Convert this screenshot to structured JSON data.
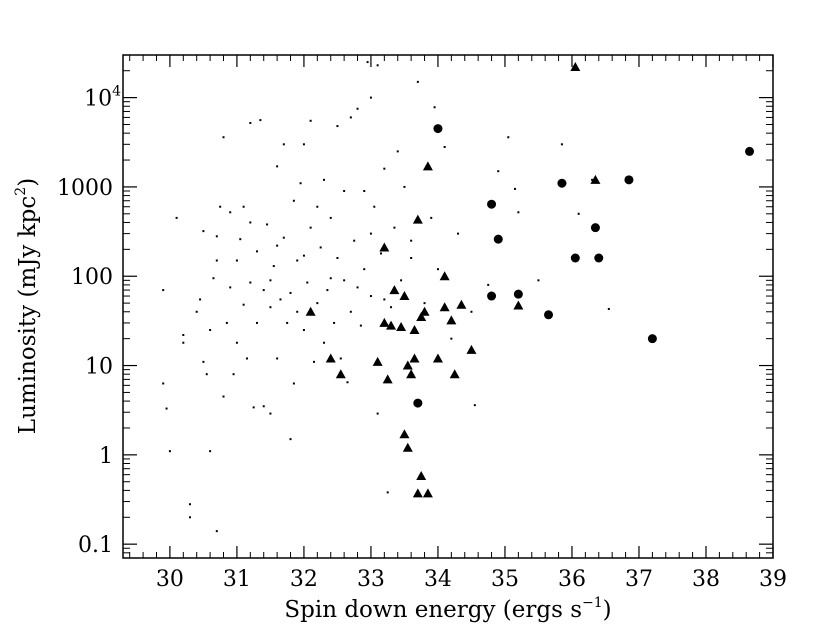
{
  "chart_data": {
    "type": "scatter",
    "title": "",
    "xlabel": "Spin down energy (ergs s",
    "xlabel_sup": "−1",
    "xlabel_close": ")",
    "ylabel": "Luminosity (mJy kpc",
    "ylabel_sup": "2",
    "ylabel_close": ")",
    "x_scale": "linear",
    "y_scale": "log",
    "xlim": [
      29.3,
      39.0
    ],
    "ylim": [
      0.07,
      30000
    ],
    "x_ticks": [
      30,
      31,
      32,
      33,
      34,
      35,
      36,
      37,
      38,
      39
    ],
    "x_tick_labels": [
      "30",
      "31",
      "32",
      "33",
      "34",
      "35",
      "36",
      "37",
      "38",
      "39"
    ],
    "y_ticks": [
      {
        "value": 0.1,
        "label": "0.1"
      },
      {
        "value": 1,
        "label": "1"
      },
      {
        "value": 10,
        "label": "10"
      },
      {
        "value": 100,
        "label": "100"
      },
      {
        "value": 1000,
        "label": "1000"
      },
      {
        "value": 10000,
        "label": "10",
        "sup": "4"
      }
    ],
    "grid": false,
    "legend": "none",
    "series": [
      {
        "marker": "dot",
        "points": [
          [
            29.9,
            6.3
          ],
          [
            29.95,
            3.3
          ],
          [
            30.0,
            1.1
          ],
          [
            29.9,
            70
          ],
          [
            30.1,
            450
          ],
          [
            30.2,
            22
          ],
          [
            30.2,
            18
          ],
          [
            30.3,
            0.2
          ],
          [
            30.3,
            0.28
          ],
          [
            30.4,
            40
          ],
          [
            30.45,
            55
          ],
          [
            30.5,
            11
          ],
          [
            30.5,
            320
          ],
          [
            30.55,
            8
          ],
          [
            30.6,
            1.1
          ],
          [
            30.6,
            25
          ],
          [
            30.65,
            95
          ],
          [
            30.7,
            0.14
          ],
          [
            30.7,
            150
          ],
          [
            30.7,
            280
          ],
          [
            30.75,
            600
          ],
          [
            30.8,
            4.5
          ],
          [
            30.8,
            3600
          ],
          [
            30.85,
            30
          ],
          [
            30.9,
            75
          ],
          [
            30.9,
            520
          ],
          [
            30.95,
            8
          ],
          [
            31.0,
            18
          ],
          [
            31.0,
            150
          ],
          [
            31.05,
            260
          ],
          [
            31.1,
            48
          ],
          [
            31.1,
            600
          ],
          [
            31.15,
            12
          ],
          [
            31.2,
            85
          ],
          [
            31.2,
            5200
          ],
          [
            31.25,
            3.4
          ],
          [
            31.3,
            30
          ],
          [
            31.3,
            190
          ],
          [
            31.35,
            5600
          ],
          [
            31.4,
            3.5
          ],
          [
            31.4,
            70
          ],
          [
            31.45,
            380
          ],
          [
            31.5,
            2.9
          ],
          [
            31.5,
            45
          ],
          [
            31.55,
            130
          ],
          [
            31.6,
            1700
          ],
          [
            31.6,
            12
          ],
          [
            31.65,
            55
          ],
          [
            31.7,
            270
          ],
          [
            31.7,
            3000
          ],
          [
            31.75,
            30
          ],
          [
            31.8,
            1.5
          ],
          [
            31.8,
            65
          ],
          [
            31.85,
            6.3
          ],
          [
            31.85,
            700
          ],
          [
            31.9,
            40
          ],
          [
            31.9,
            150
          ],
          [
            31.95,
            1100
          ],
          [
            32.0,
            25
          ],
          [
            32.0,
            3000
          ],
          [
            32.05,
            85
          ],
          [
            32.1,
            350
          ],
          [
            32.1,
            5500
          ],
          [
            32.15,
            11
          ],
          [
            32.2,
            50
          ],
          [
            32.25,
            210
          ],
          [
            32.3,
            1200
          ],
          [
            32.3,
            18
          ],
          [
            32.35,
            70
          ],
          [
            32.4,
            450
          ],
          [
            32.45,
            30
          ],
          [
            32.5,
            160
          ],
          [
            32.5,
            4800
          ],
          [
            32.55,
            12
          ],
          [
            32.6,
            90
          ],
          [
            32.6,
            900
          ],
          [
            32.65,
            6.5
          ],
          [
            32.7,
            40
          ],
          [
            32.7,
            6000
          ],
          [
            32.75,
            250
          ],
          [
            32.8,
            7500
          ],
          [
            32.85,
            28
          ],
          [
            32.9,
            120
          ],
          [
            32.9,
            900
          ],
          [
            32.95,
            25000
          ],
          [
            33.0,
            10000
          ],
          [
            33.0,
            60
          ],
          [
            33.05,
            600
          ],
          [
            33.1,
            23000
          ],
          [
            33.1,
            2.9
          ],
          [
            33.15,
            180
          ],
          [
            33.2,
            1600
          ],
          [
            33.25,
            0.38
          ],
          [
            33.3,
            45
          ],
          [
            33.35,
            350
          ],
          [
            33.4,
            2500
          ],
          [
            33.45,
            90
          ],
          [
            33.5,
            1000
          ],
          [
            33.6,
            250
          ],
          [
            33.7,
            15000
          ],
          [
            33.8,
            50
          ],
          [
            33.9,
            450
          ],
          [
            33.95,
            7800
          ],
          [
            34.0,
            120
          ],
          [
            34.1,
            2800
          ],
          [
            34.2,
            20
          ],
          [
            34.3,
            300
          ],
          [
            34.5,
            40
          ],
          [
            34.55,
            3.6
          ],
          [
            34.75,
            80
          ],
          [
            34.9,
            1500
          ],
          [
            35.05,
            3600
          ],
          [
            35.15,
            950
          ],
          [
            35.2,
            520
          ],
          [
            35.85,
            3000
          ],
          [
            35.9,
            1100
          ],
          [
            36.55,
            43
          ],
          [
            36.3,
            1200
          ],
          [
            36.1,
            500
          ],
          [
            35.5,
            90
          ],
          [
            31.2,
            400
          ],
          [
            31.6,
            220
          ],
          [
            32.0,
            170
          ],
          [
            32.4,
            95
          ],
          [
            32.8,
            75
          ],
          [
            33.2,
            55
          ],
          [
            31.5,
            90
          ],
          [
            32.2,
            600
          ],
          [
            33.0,
            300
          ],
          [
            33.6,
            160
          ]
        ]
      },
      {
        "marker": "triangle",
        "points": [
          [
            32.1,
            40
          ],
          [
            32.4,
            12
          ],
          [
            32.55,
            8
          ],
          [
            33.1,
            11
          ],
          [
            33.2,
            30
          ],
          [
            33.2,
            210
          ],
          [
            33.25,
            7
          ],
          [
            33.3,
            28
          ],
          [
            33.35,
            70
          ],
          [
            33.45,
            27
          ],
          [
            33.5,
            1.7
          ],
          [
            33.5,
            60
          ],
          [
            33.55,
            10
          ],
          [
            33.55,
            1.2
          ],
          [
            33.6,
            8
          ],
          [
            33.65,
            12
          ],
          [
            33.65,
            25
          ],
          [
            33.7,
            430
          ],
          [
            33.7,
            0.37
          ],
          [
            33.75,
            0.58
          ],
          [
            33.75,
            35
          ],
          [
            33.8,
            40
          ],
          [
            33.85,
            1700
          ],
          [
            33.85,
            0.37
          ],
          [
            34.0,
            12
          ],
          [
            34.1,
            45
          ],
          [
            34.1,
            100
          ],
          [
            34.2,
            32
          ],
          [
            34.25,
            8
          ],
          [
            34.35,
            48
          ],
          [
            34.5,
            15
          ],
          [
            35.2,
            47
          ],
          [
            36.05,
            22000
          ],
          [
            36.35,
            1200
          ]
        ]
      },
      {
        "marker": "circle",
        "points": [
          [
            33.7,
            3.8
          ],
          [
            34.0,
            4500
          ],
          [
            34.8,
            640
          ],
          [
            34.8,
            60
          ],
          [
            34.9,
            260
          ],
          [
            35.2,
            63
          ],
          [
            35.65,
            37
          ],
          [
            35.85,
            1100
          ],
          [
            36.05,
            160
          ],
          [
            36.35,
            350
          ],
          [
            36.4,
            160
          ],
          [
            36.85,
            1200
          ],
          [
            37.2,
            20
          ],
          [
            38.65,
            2500
          ]
        ]
      }
    ]
  }
}
